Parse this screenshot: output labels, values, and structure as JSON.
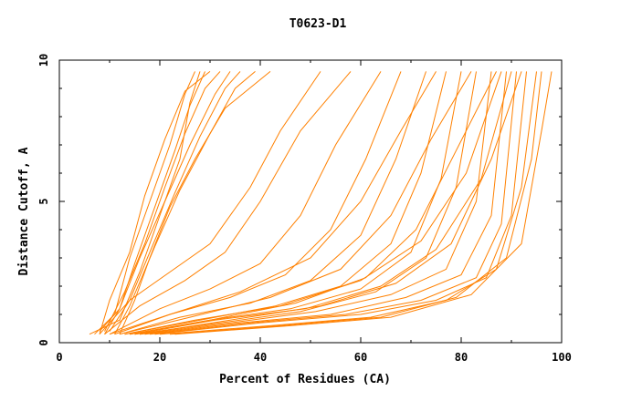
{
  "chart_data": {
    "type": "line",
    "title": "T0623-D1",
    "xlabel": "Percent of Residues (CA)",
    "ylabel": "Distance Cutoff, A",
    "xlim": [
      0,
      100
    ],
    "ylim": [
      0,
      10
    ],
    "x_ticks": [
      0,
      20,
      40,
      60,
      80,
      100
    ],
    "y_ticks": [
      0,
      5,
      10
    ],
    "grid": false,
    "legend": "none",
    "line_color": "#ff8000",
    "series": [
      {
        "x": [
          6,
          12,
          16,
          20,
          24,
          26,
          28
        ],
        "y": [
          0.3,
          0.8,
          2.5,
          4.5,
          6.5,
          8.5,
          9.6
        ]
      },
      {
        "x": [
          7,
          11,
          14,
          18,
          22,
          25,
          27
        ],
        "y": [
          0.3,
          1.0,
          3.0,
          5.0,
          7.0,
          8.8,
          9.6
        ]
      },
      {
        "x": [
          8,
          12,
          15,
          19,
          23,
          26,
          29
        ],
        "y": [
          0.4,
          1.2,
          2.8,
          4.8,
          6.8,
          8.4,
          9.6
        ]
      },
      {
        "x": [
          8,
          10,
          14,
          17,
          21,
          25,
          30
        ],
        "y": [
          0.3,
          1.5,
          3.2,
          5.2,
          7.2,
          8.9,
          9.6
        ]
      },
      {
        "x": [
          9,
          13,
          17,
          21,
          25,
          29,
          32
        ],
        "y": [
          0.4,
          1.8,
          3.5,
          5.5,
          7.4,
          9.0,
          9.6
        ]
      },
      {
        "x": [
          9,
          12,
          16,
          21,
          26,
          31,
          34
        ],
        "y": [
          0.3,
          1.2,
          3.0,
          5.0,
          7.0,
          8.8,
          9.6
        ]
      },
      {
        "x": [
          10,
          14,
          18,
          23,
          28,
          33,
          36
        ],
        "y": [
          0.4,
          1.5,
          3.2,
          5.3,
          7.3,
          9.0,
          9.6
        ]
      },
      {
        "x": [
          11,
          14,
          19,
          24,
          30,
          35,
          39
        ],
        "y": [
          0.3,
          1.3,
          3.4,
          5.4,
          7.4,
          9.0,
          9.6
        ]
      },
      {
        "x": [
          12,
          15,
          18,
          22,
          27,
          33,
          42
        ],
        "y": [
          0.3,
          1.5,
          3.0,
          4.8,
          6.5,
          8.3,
          9.6
        ]
      },
      {
        "x": [
          8,
          14,
          22,
          30,
          38,
          44,
          52
        ],
        "y": [
          0.3,
          1.5,
          2.5,
          3.5,
          5.5,
          7.5,
          9.6
        ]
      },
      {
        "x": [
          9,
          16,
          25,
          33,
          40,
          48,
          58
        ],
        "y": [
          0.3,
          1.3,
          2.2,
          3.2,
          5.0,
          7.5,
          9.6
        ]
      },
      {
        "x": [
          10,
          20,
          30,
          40,
          48,
          55,
          64
        ],
        "y": [
          0.3,
          1.2,
          1.9,
          2.8,
          4.5,
          7.0,
          9.6
        ]
      },
      {
        "x": [
          11,
          22,
          34,
          45,
          54,
          61,
          68
        ],
        "y": [
          0.3,
          1.0,
          1.6,
          2.4,
          4.0,
          6.5,
          9.6
        ]
      },
      {
        "x": [
          12,
          24,
          38,
          50,
          60,
          67,
          73
        ],
        "y": [
          0.3,
          0.9,
          1.4,
          2.2,
          3.8,
          6.5,
          9.6
        ]
      },
      {
        "x": [
          13,
          28,
          43,
          56,
          66,
          72,
          77
        ],
        "y": [
          0.3,
          0.8,
          1.3,
          2.0,
          3.5,
          6.0,
          9.6
        ]
      },
      {
        "x": [
          14,
          30,
          46,
          60,
          70,
          76,
          80
        ],
        "y": [
          0.3,
          0.8,
          1.2,
          1.9,
          3.2,
          5.8,
          9.6
        ]
      },
      {
        "x": [
          15,
          32,
          48,
          63,
          73,
          79,
          83
        ],
        "y": [
          0.3,
          0.7,
          1.1,
          1.8,
          3.0,
          5.5,
          9.6
        ]
      },
      {
        "x": [
          16,
          34,
          51,
          66,
          77,
          83,
          86
        ],
        "y": [
          0.3,
          0.7,
          1.1,
          1.7,
          2.6,
          5.0,
          9.6
        ]
      },
      {
        "x": [
          17,
          36,
          54,
          69,
          80,
          86,
          89
        ],
        "y": [
          0.3,
          0.7,
          1.0,
          1.6,
          2.4,
          4.5,
          9.6
        ]
      },
      {
        "x": [
          18,
          38,
          57,
          72,
          83,
          88,
          91
        ],
        "y": [
          0.3,
          0.7,
          1.0,
          1.5,
          2.3,
          4.2,
          9.6
        ]
      },
      {
        "x": [
          19,
          40,
          60,
          75,
          85,
          90,
          93
        ],
        "y": [
          0.3,
          0.7,
          1.0,
          1.5,
          2.3,
          4.5,
          9.6
        ]
      },
      {
        "x": [
          20,
          42,
          62,
          77,
          87,
          92,
          95
        ],
        "y": [
          0.3,
          0.6,
          0.9,
          1.5,
          2.6,
          5.5,
          9.6
        ]
      },
      {
        "x": [
          22,
          44,
          64,
          79,
          89,
          94,
          96
        ],
        "y": [
          0.3,
          0.6,
          0.9,
          1.6,
          3.0,
          6.5,
          9.6
        ]
      },
      {
        "x": [
          23,
          46,
          66,
          82,
          92,
          96,
          98
        ],
        "y": [
          0.3,
          0.6,
          0.9,
          1.7,
          3.5,
          7.5,
          9.6
        ]
      },
      {
        "x": [
          10,
          22,
          36,
          50,
          60,
          68,
          75
        ],
        "y": [
          0.3,
          1.0,
          1.8,
          3.0,
          5.0,
          7.5,
          9.6
        ]
      },
      {
        "x": [
          12,
          26,
          42,
          56,
          66,
          74,
          82
        ],
        "y": [
          0.3,
          0.9,
          1.6,
          2.6,
          4.5,
          7.2,
          9.6
        ]
      },
      {
        "x": [
          14,
          30,
          47,
          61,
          71,
          79,
          87
        ],
        "y": [
          0.3,
          0.8,
          1.4,
          2.3,
          4.0,
          6.8,
          9.6
        ]
      },
      {
        "x": [
          16,
          34,
          52,
          67,
          78,
          86,
          92
        ],
        "y": [
          0.3,
          0.8,
          1.3,
          2.1,
          3.5,
          6.5,
          9.6
        ]
      },
      {
        "x": [
          13,
          27,
          44,
          60,
          72,
          81,
          88
        ],
        "y": [
          0.3,
          0.8,
          1.3,
          2.2,
          3.6,
          6.0,
          9.6
        ]
      },
      {
        "x": [
          15,
          31,
          49,
          64,
          75,
          84,
          90
        ],
        "y": [
          0.3,
          0.8,
          1.2,
          2.0,
          3.3,
          5.8,
          9.6
        ]
      }
    ]
  }
}
